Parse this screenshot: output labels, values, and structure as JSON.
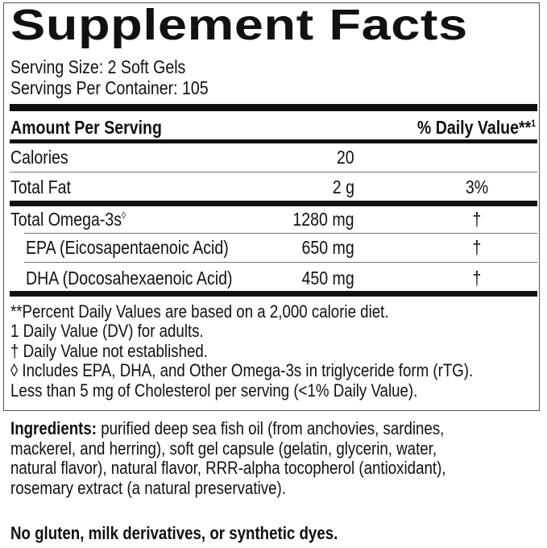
{
  "title": "Supplement Facts",
  "serving_size": "Serving Size: 2 Soft Gels",
  "servings_per_container": "Servings Per Container: 105",
  "header": {
    "amount": "Amount Per Serving",
    "daily_value": "% Daily Value**",
    "daily_value_sup": "1"
  },
  "rows": [
    {
      "name": "Calories",
      "amount": "20",
      "dv": ""
    },
    {
      "name": "Total Fat",
      "amount": "2 g",
      "dv": "3%"
    },
    {
      "name": "Total Omega-3s",
      "sup": "◊",
      "amount": "1280 mg",
      "dv": "†"
    },
    {
      "name": "EPA (Eicosapentaenoic Acid)",
      "amount": "650 mg",
      "dv": "†"
    },
    {
      "name": "DHA (Docosahexaenoic Acid)",
      "amount": "450 mg",
      "dv": "†"
    }
  ],
  "footnotes": [
    "**Percent Daily Values are based on a 2,000 calorie diet.",
    "1 Daily Value (DV) for adults.",
    "† Daily Value not established.",
    "◊ Includes EPA, DHA, and Other Omega-3s in triglyceride form (rTG).",
    "Less than 5 mg of Cholesterol per serving (<1% Daily Value)."
  ],
  "ingredients": {
    "label": "Ingredients:",
    "lines": [
      " purified deep sea fish oil (from anchovies, sardines,",
      "mackerel, and herring), soft gel capsule (gelatin, glycerin, water,",
      "natural flavor), natural flavor, RRR-alpha tocopherol (antioxidant),",
      "rosemary extract (a natural preservative)."
    ]
  },
  "claim": "No gluten, milk derivatives, or synthetic dyes."
}
